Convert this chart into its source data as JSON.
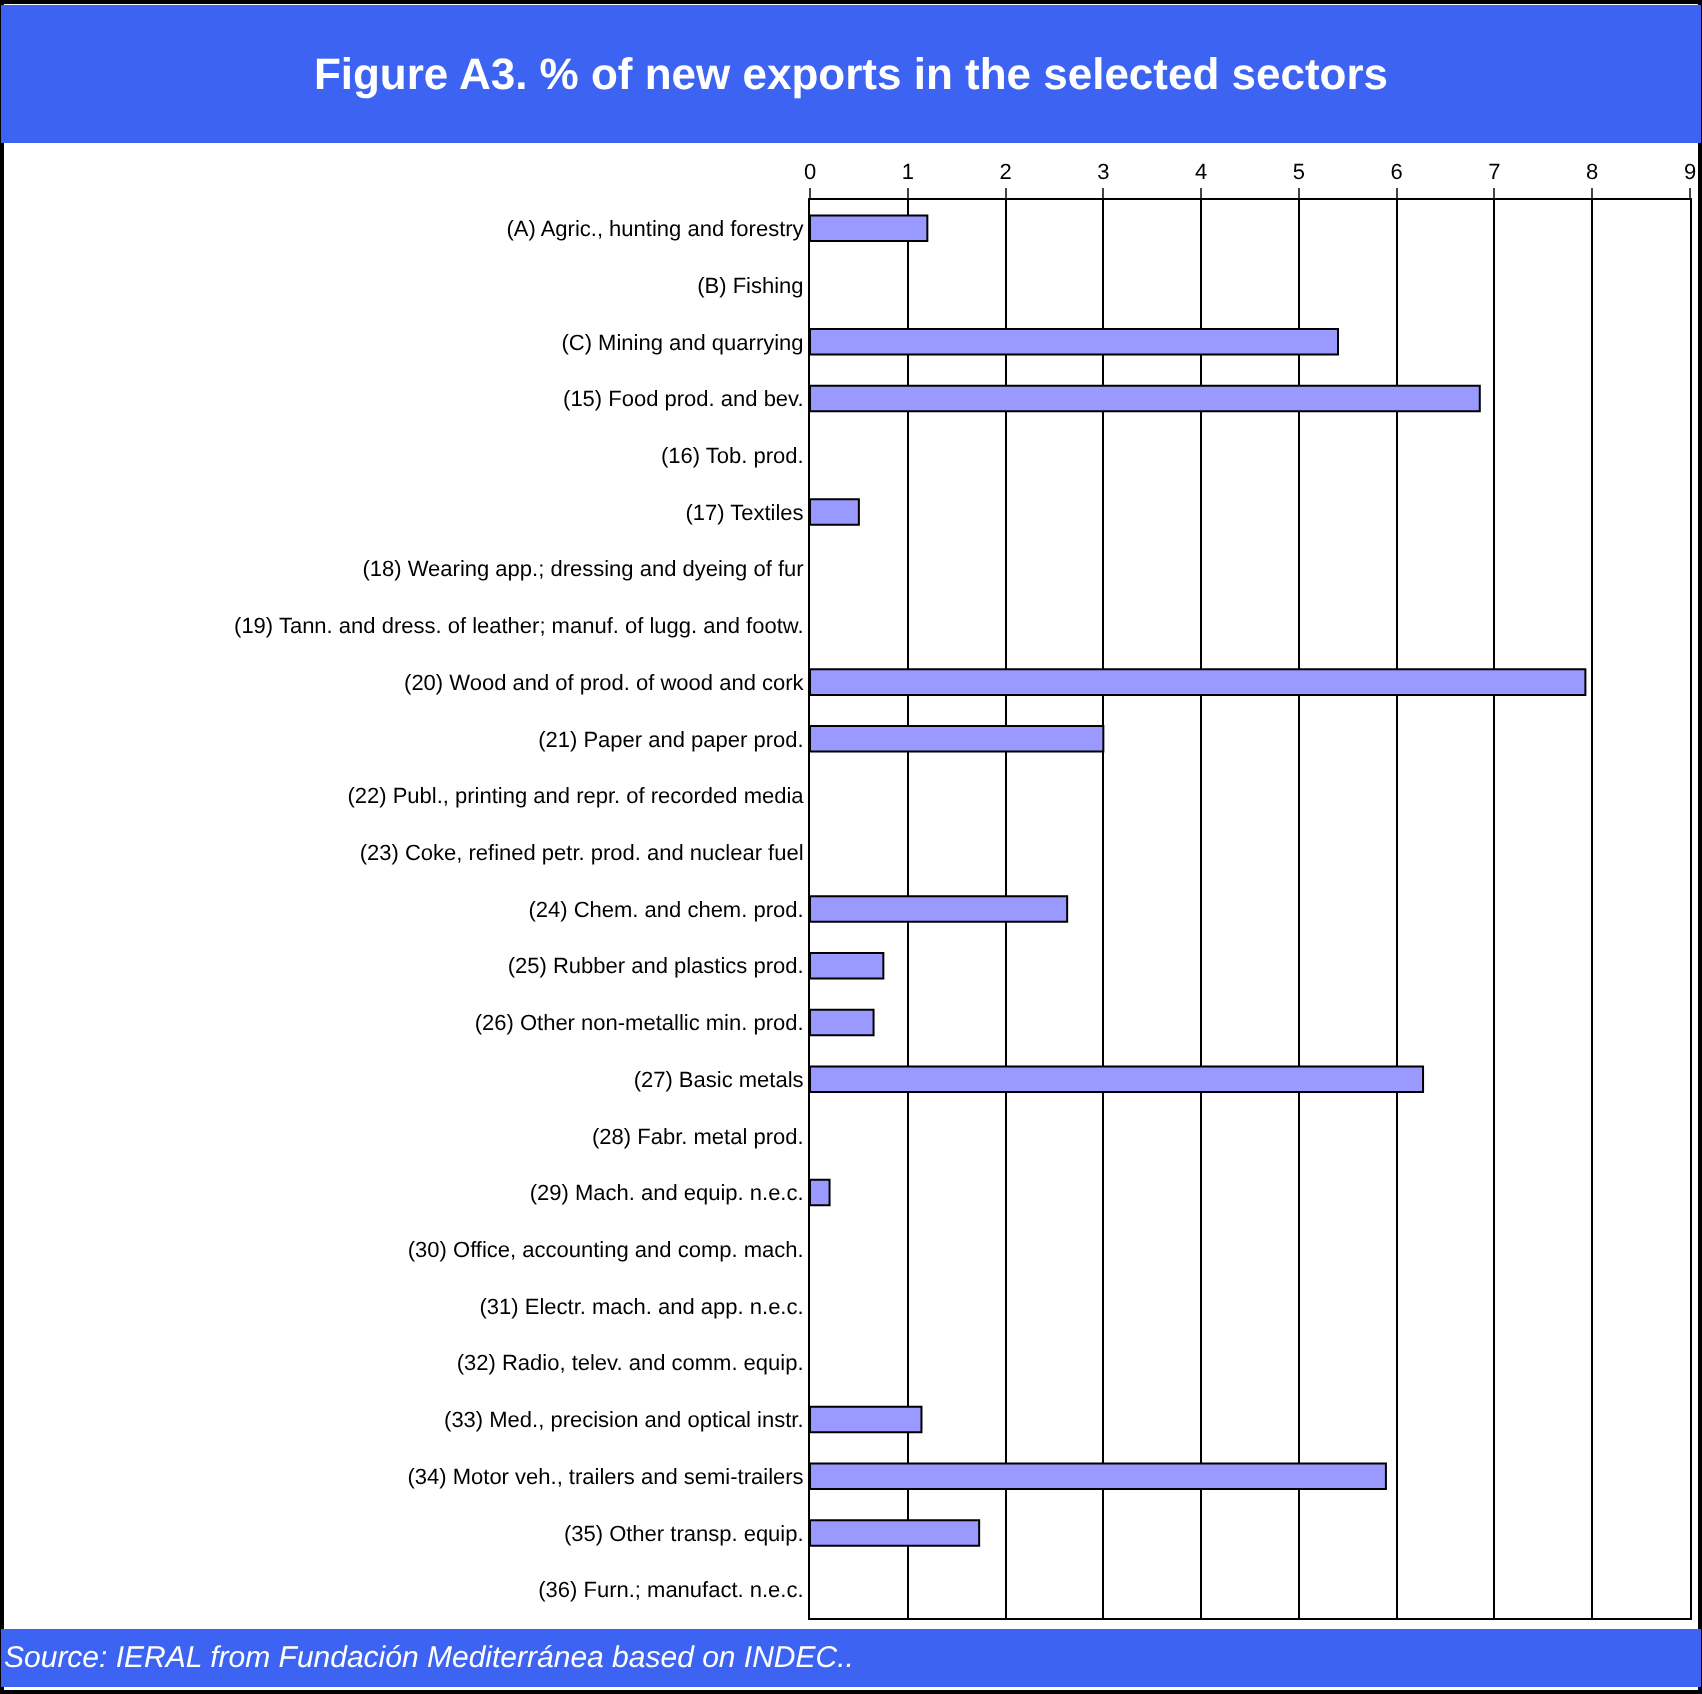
{
  "chart_data": {
    "type": "bar",
    "orientation": "horizontal",
    "title": "Figure A3. % of new exports in the selected sectors",
    "categories": [
      "(A) Agric., hunting and forestry",
      "(B) Fishing",
      "(C) Mining and quarrying",
      "(15) Food prod. and bev.",
      "(16) Tob. prod.",
      "(17) Textiles",
      "(18) Wearing app.; dressing and dyeing of fur",
      "(19) Tann. and dress. of leather; manuf. of lugg. and footw.",
      "(20) Wood and of prod. of wood and cork",
      "(21) Paper and paper prod.",
      "(22) Publ., printing and repr. of recorded media",
      "(23) Coke, refined petr. prod. and nuclear fuel",
      "(24) Chem. and chem. prod.",
      "(25) Rubber and plastics prod.",
      "(26) Other non-metallic min. prod.",
      "(27) Basic metals",
      "(28) Fabr. metal prod.",
      "(29) Mach. and equip. n.e.c.",
      "(30) Office, accounting and comp. mach.",
      "(31) Electr. mach. and app. n.e.c.",
      "(32) Radio, telev. and comm. equip.",
      "(33) Med., precision and optical instr.",
      "(34) Motor veh., trailers and semi-trailers",
      "(35) Other transp. equip.",
      "(36) Furn.; manufact. n.e.c."
    ],
    "values": [
      1.2,
      null,
      5.4,
      6.85,
      null,
      0.5,
      null,
      null,
      7.93,
      3.0,
      null,
      null,
      2.63,
      0.75,
      0.65,
      6.27,
      null,
      0.2,
      null,
      null,
      null,
      1.14,
      5.89,
      1.73,
      null
    ],
    "color": "#9999ff",
    "xlim": [
      0,
      9
    ],
    "xticks": [
      0,
      1,
      2,
      3,
      4,
      5,
      6,
      7,
      8,
      9
    ],
    "grid": "x",
    "annotations": [
      "Source: IERAL from Fundación Mediterránea based on INDEC.."
    ]
  }
}
